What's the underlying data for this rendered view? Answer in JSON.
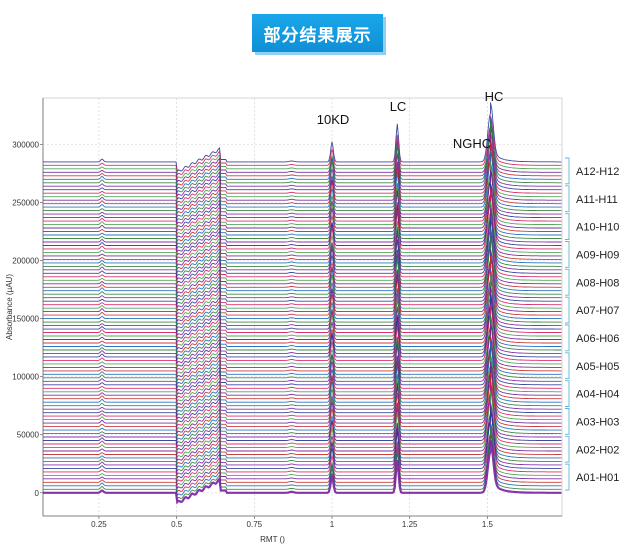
{
  "header": {
    "title": "部分结果展示"
  },
  "chart_data": {
    "type": "line",
    "title": "",
    "xlabel": "RMT ()",
    "ylabel": "Absorbance (µAU)",
    "xlim": [
      0.07,
      1.74
    ],
    "ylim": [
      -20000,
      340000
    ],
    "x_ticks": [
      0.25,
      0.5,
      0.75,
      1,
      1.25,
      1.5
    ],
    "x_tick_labels": [
      "0.25",
      "0.5",
      "0.75",
      "1",
      "1.25",
      "1.5"
    ],
    "y_ticks": [
      0,
      50000,
      100000,
      150000,
      200000,
      250000,
      300000
    ],
    "y_tick_labels": [
      "0",
      "50000",
      "100000",
      "150000",
      "200000",
      "250000",
      "300000"
    ],
    "grid": true,
    "trace_count": 96,
    "trace_offset_step": 3000,
    "trace_colors": [
      "#7a1fa2",
      "#2e7d32",
      "#1565c0",
      "#c62828",
      "#6a1b9a",
      "#43a047",
      "#d81b60",
      "#283593"
    ],
    "annotations": [
      {
        "text": "10KD",
        "x": 1.0
      },
      {
        "text": "LC",
        "x": 1.21
      },
      {
        "text": "NGHC",
        "x": 1.46
      },
      {
        "text": "HC",
        "x": 1.51
      }
    ],
    "peaks": [
      {
        "x": 0.26,
        "height": 2500
      },
      {
        "x": 1.0,
        "height": 18000
      },
      {
        "x": 1.21,
        "height": 35000
      },
      {
        "x": 1.51,
        "height": 45000
      }
    ],
    "legend_groups": [
      "A12-H12",
      "A11-H11",
      "A10-H10",
      "A09-H09",
      "A08-H08",
      "A07-H07",
      "A06-H06",
      "A05-H05",
      "A04-H04",
      "A03-H03",
      "A02-H02",
      "A01-H01"
    ],
    "legend_position": "right"
  }
}
